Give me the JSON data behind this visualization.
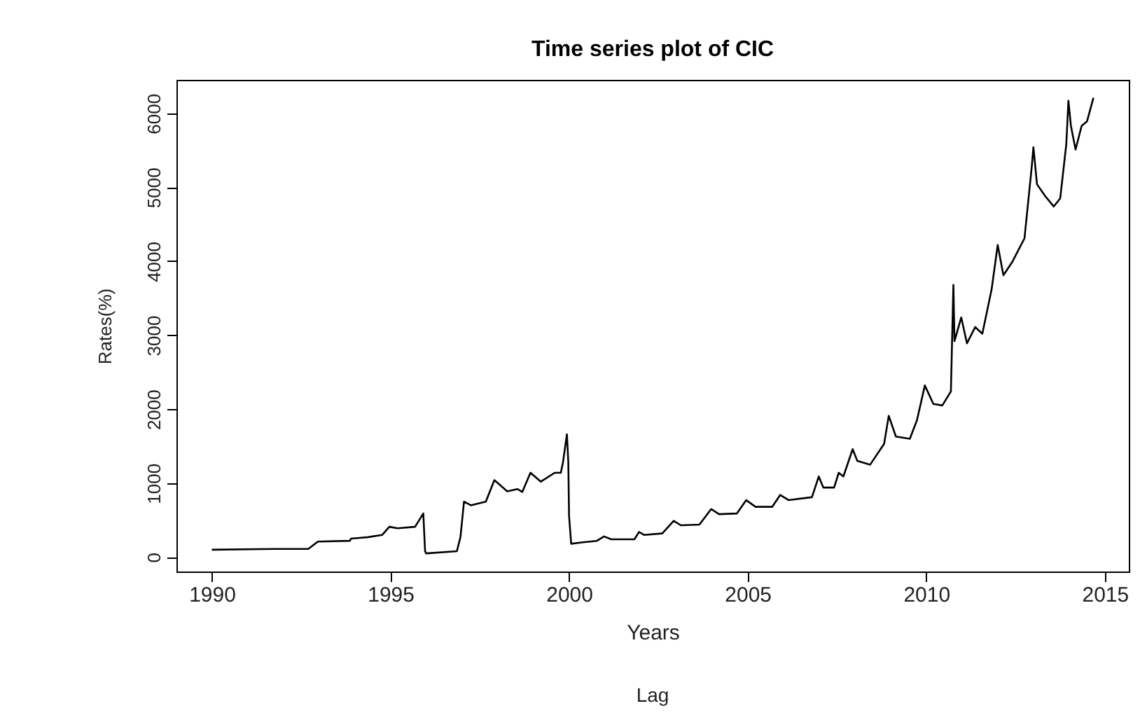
{
  "chart_data": {
    "type": "line",
    "title": "Time series plot of CIC",
    "xlabel": "Years",
    "ylabel": "Rates(%)",
    "annotations": [
      "Lag"
    ],
    "x": [
      1990.0,
      1991.76,
      1992.7,
      1992.97,
      1993.86,
      1993.9,
      1994.38,
      1994.77,
      1994.97,
      1995.2,
      1995.69,
      1995.92,
      1995.97,
      1996.0,
      1996.86,
      1996.96,
      1997.06,
      1997.25,
      1997.67,
      1997.91,
      1998.27,
      1998.56,
      1998.69,
      1998.92,
      1999.21,
      1999.6,
      1999.77,
      1999.83,
      1999.94,
      1999.98,
      2000.0,
      2000.06,
      2000.39,
      2000.78,
      2000.98,
      2001.18,
      2001.83,
      2001.96,
      2002.1,
      2002.61,
      2002.93,
      2003.13,
      2003.65,
      2003.98,
      2004.2,
      2004.7,
      2004.96,
      2005.22,
      2005.69,
      2005.91,
      2006.15,
      2006.8,
      2006.99,
      2007.12,
      2007.42,
      2007.55,
      2007.68,
      2007.94,
      2008.07,
      2008.43,
      2008.82,
      2008.95,
      2009.15,
      2009.54,
      2009.74,
      2009.96,
      2010.2,
      2010.45,
      2010.69,
      2010.76,
      2010.79,
      2010.98,
      2011.14,
      2011.37,
      2011.57,
      2011.83,
      2012.0,
      2012.16,
      2012.42,
      2012.75,
      2012.95,
      2013.0,
      2013.1,
      2013.33,
      2013.57,
      2013.75,
      2013.92,
      2013.98,
      2014.05,
      2014.18,
      2014.35,
      2014.5,
      2014.68
    ],
    "series": [
      {
        "color": "#000000",
        "values": [
          100,
          110,
          110,
          210,
          220,
          250,
          270,
          300,
          410,
          390,
          410,
          590,
          80,
          50,
          80,
          270,
          750,
          700,
          750,
          1040,
          890,
          920,
          880,
          1140,
          1020,
          1140,
          1140,
          1280,
          1660,
          1280,
          560,
          180,
          200,
          220,
          280,
          240,
          240,
          340,
          300,
          320,
          490,
          430,
          440,
          650,
          580,
          590,
          770,
          680,
          680,
          840,
          770,
          810,
          1090,
          940,
          940,
          1140,
          1090,
          1460,
          1300,
          1250,
          1530,
          1910,
          1630,
          1600,
          1850,
          2320,
          2070,
          2050,
          2240,
          3680,
          2920,
          3240,
          2890,
          3110,
          3020,
          3620,
          4220,
          3810,
          4000,
          4310,
          5260,
          5540,
          5040,
          4880,
          4740,
          4850,
          5580,
          6170,
          5830,
          5510,
          5830,
          5890,
          6210
        ]
      }
    ],
    "xlim": [
      1989.01,
      2015.67
    ],
    "ylim": [
      -195,
      6452
    ],
    "xticks": [
      1990,
      1995,
      2000,
      2005,
      2010,
      2015
    ],
    "yticks": [
      0,
      1000,
      2000,
      3000,
      4000,
      5000,
      6000
    ],
    "marker": "none",
    "line_style": "solid"
  }
}
